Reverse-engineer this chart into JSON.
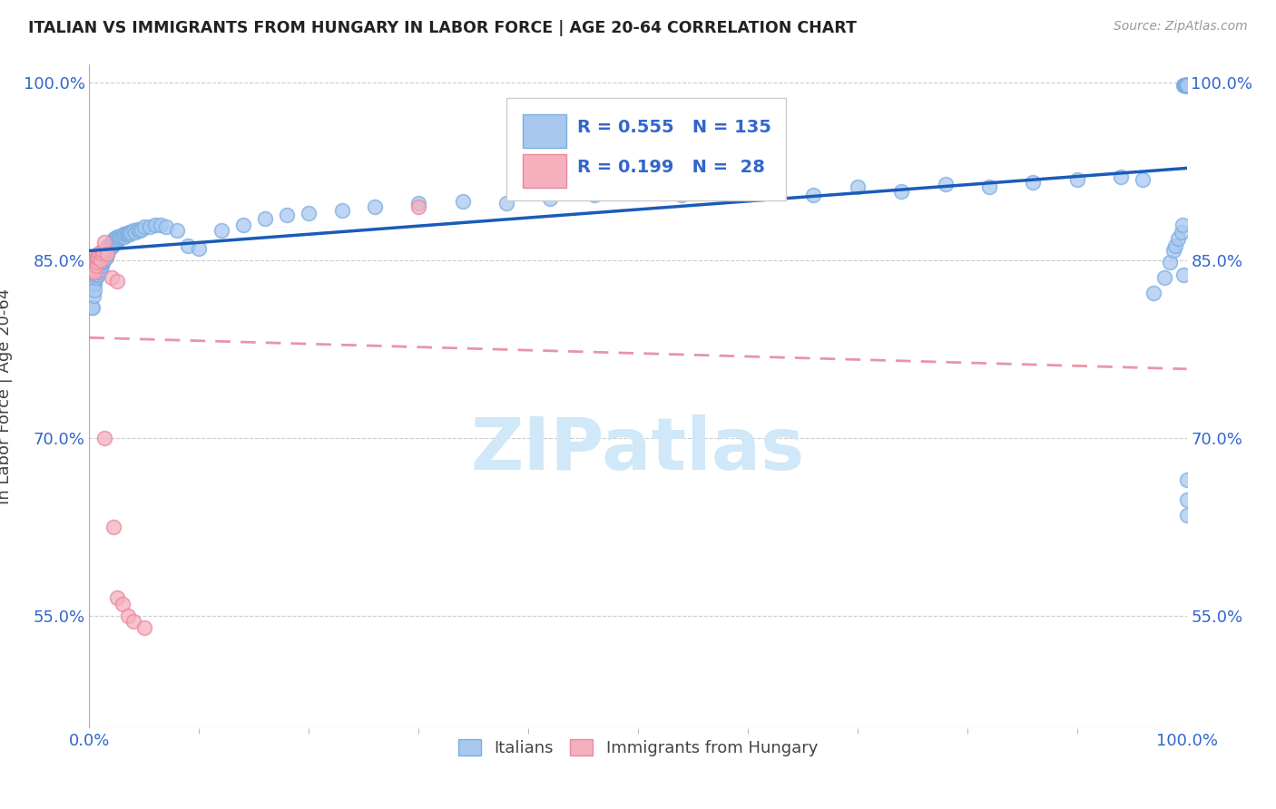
{
  "title": "ITALIAN VS IMMIGRANTS FROM HUNGARY IN LABOR FORCE | AGE 20-64 CORRELATION CHART",
  "source": "Source: ZipAtlas.com",
  "ylabel": "In Labor Force | Age 20-64",
  "legend_label1": "Italians",
  "legend_label2": "Immigrants from Hungary",
  "R1": 0.555,
  "N1": 135,
  "R2": 0.199,
  "N2": 28,
  "blue_color": "#a8c8f0",
  "blue_edge_color": "#7aaee0",
  "blue_line_color": "#1a5cb8",
  "pink_color": "#f5b0be",
  "pink_edge_color": "#e888a0",
  "pink_line_color": "#e06880",
  "title_color": "#222222",
  "source_color": "#999999",
  "axis_label_color": "#3366cc",
  "grid_color": "#cccccc",
  "watermark": "ZIPatlas",
  "watermark_color": "#d0e8f8",
  "blue_x": [
    0.002,
    0.003,
    0.004,
    0.004,
    0.005,
    0.005,
    0.006,
    0.006,
    0.007,
    0.007,
    0.008,
    0.008,
    0.009,
    0.009,
    0.01,
    0.01,
    0.01,
    0.011,
    0.011,
    0.011,
    0.012,
    0.012,
    0.012,
    0.013,
    0.013,
    0.013,
    0.014,
    0.014,
    0.015,
    0.015,
    0.015,
    0.016,
    0.016,
    0.017,
    0.017,
    0.017,
    0.018,
    0.018,
    0.019,
    0.019,
    0.02,
    0.02,
    0.021,
    0.021,
    0.022,
    0.022,
    0.023,
    0.023,
    0.024,
    0.024,
    0.025,
    0.025,
    0.026,
    0.027,
    0.028,
    0.029,
    0.03,
    0.031,
    0.032,
    0.033,
    0.034,
    0.035,
    0.036,
    0.037,
    0.038,
    0.04,
    0.042,
    0.044,
    0.046,
    0.048,
    0.05,
    0.055,
    0.06,
    0.065,
    0.07,
    0.08,
    0.09,
    0.1,
    0.12,
    0.14,
    0.16,
    0.18,
    0.2,
    0.23,
    0.26,
    0.3,
    0.34,
    0.38,
    0.42,
    0.46,
    0.5,
    0.54,
    0.58,
    0.62,
    0.66,
    0.7,
    0.74,
    0.78,
    0.82,
    0.86,
    0.9,
    0.94,
    0.96,
    0.97,
    0.98,
    0.985,
    0.988,
    0.99,
    0.992,
    0.995,
    0.996,
    0.997,
    0.997,
    0.998,
    0.998,
    0.998,
    0.999,
    0.999,
    0.999,
    1.0,
    1.0,
    1.0,
    1.0,
    1.0,
    1.0,
    1.0,
    1.0,
    1.0,
    1.0,
    1.0,
    1.0,
    1.0,
    1.0,
    1.0,
    1.0
  ],
  "blue_y": [
    0.81,
    0.81,
    0.82,
    0.83,
    0.83,
    0.825,
    0.835,
    0.838,
    0.84,
    0.84,
    0.838,
    0.842,
    0.84,
    0.845,
    0.842,
    0.845,
    0.848,
    0.845,
    0.848,
    0.85,
    0.848,
    0.85,
    0.852,
    0.85,
    0.852,
    0.854,
    0.852,
    0.855,
    0.852,
    0.855,
    0.858,
    0.855,
    0.858,
    0.858,
    0.86,
    0.862,
    0.86,
    0.862,
    0.86,
    0.862,
    0.862,
    0.865,
    0.862,
    0.865,
    0.864,
    0.866,
    0.865,
    0.868,
    0.866,
    0.868,
    0.866,
    0.87,
    0.868,
    0.868,
    0.87,
    0.87,
    0.87,
    0.872,
    0.87,
    0.872,
    0.872,
    0.872,
    0.874,
    0.872,
    0.874,
    0.875,
    0.874,
    0.876,
    0.875,
    0.876,
    0.878,
    0.878,
    0.88,
    0.88,
    0.878,
    0.875,
    0.862,
    0.86,
    0.875,
    0.88,
    0.885,
    0.888,
    0.89,
    0.892,
    0.895,
    0.898,
    0.9,
    0.898,
    0.902,
    0.905,
    0.908,
    0.905,
    0.91,
    0.912,
    0.905,
    0.912,
    0.908,
    0.914,
    0.912,
    0.916,
    0.918,
    0.92,
    0.918,
    0.822,
    0.835,
    0.848,
    0.858,
    0.862,
    0.868,
    0.874,
    0.88,
    0.838,
    0.998,
    0.998,
    0.998,
    0.998,
    0.998,
    0.998,
    0.998,
    0.998,
    0.998,
    0.998,
    0.998,
    0.998,
    0.998,
    0.998,
    0.998,
    0.998,
    0.998,
    0.998,
    0.998,
    0.998,
    0.665,
    0.648,
    0.635
  ],
  "pink_x": [
    0.002,
    0.003,
    0.003,
    0.004,
    0.004,
    0.005,
    0.005,
    0.006,
    0.006,
    0.007,
    0.007,
    0.008,
    0.009,
    0.01,
    0.011,
    0.012,
    0.014,
    0.016,
    0.02,
    0.025,
    0.014,
    0.022,
    0.025,
    0.03,
    0.035,
    0.04,
    0.05,
    0.3
  ],
  "pink_y": [
    0.845,
    0.84,
    0.85,
    0.842,
    0.848,
    0.84,
    0.85,
    0.845,
    0.852,
    0.848,
    0.852,
    0.852,
    0.856,
    0.85,
    0.856,
    0.858,
    0.865,
    0.855,
    0.835,
    0.832,
    0.7,
    0.625,
    0.565,
    0.56,
    0.55,
    0.545,
    0.54,
    0.895
  ],
  "xlim": [
    0.0,
    1.0
  ],
  "ylim": [
    0.455,
    1.015
  ],
  "yticks": [
    0.55,
    0.7,
    0.85,
    1.0
  ],
  "ytick_labels": [
    "55.0%",
    "70.0%",
    "85.0%",
    "100.0%"
  ],
  "xtick_left": "0.0%",
  "xtick_right": "100.0%"
}
